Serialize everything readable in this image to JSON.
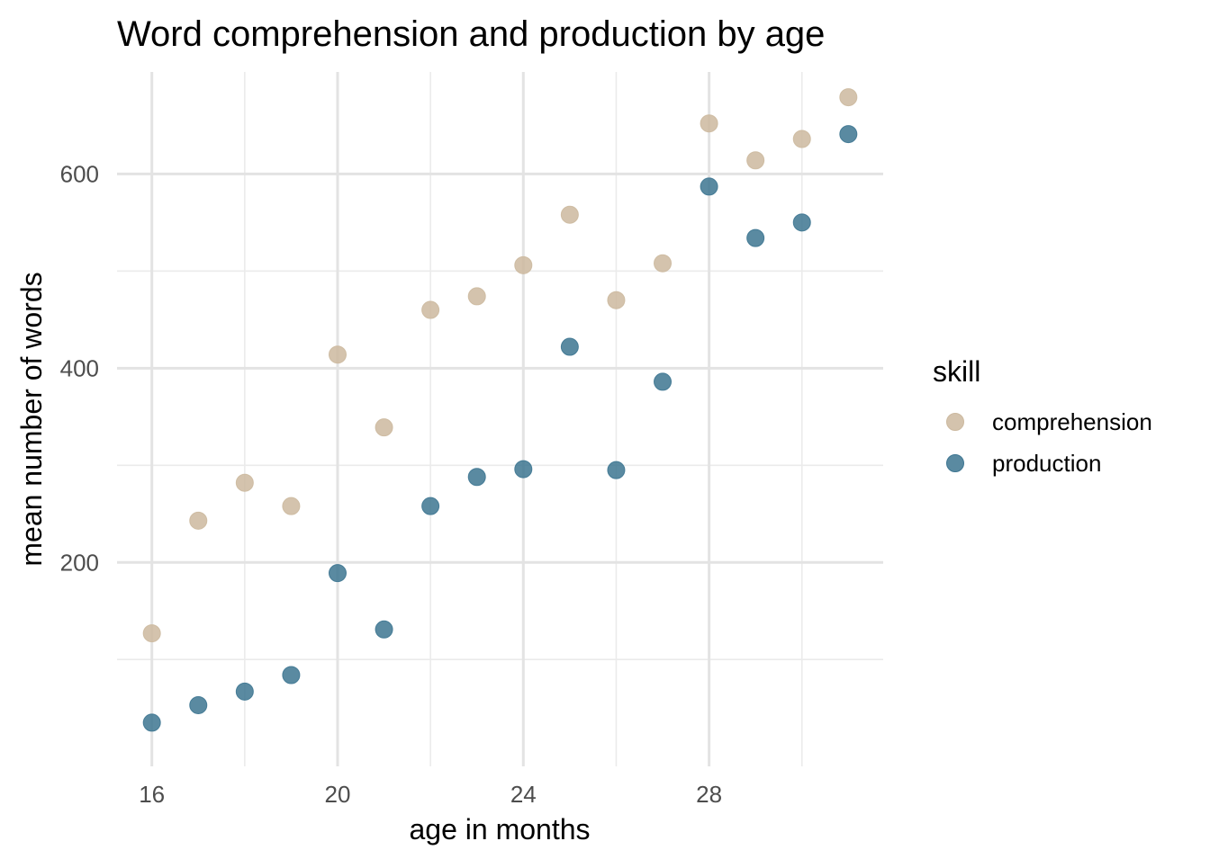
{
  "chart_data": {
    "type": "scatter",
    "title": "Word comprehension and production by age",
    "xlabel": "age in months",
    "ylabel": "mean number of words",
    "xlim": [
      15.25,
      31.75
    ],
    "ylim": [
      -10,
      705
    ],
    "x_ticks": [
      16,
      20,
      24,
      28
    ],
    "x_tick_labels": [
      "16",
      "20",
      "24",
      "28"
    ],
    "x_minor_gridlines": [
      18,
      22,
      26,
      30
    ],
    "y_ticks": [
      200,
      400,
      600
    ],
    "y_tick_labels": [
      "200",
      "400",
      "600"
    ],
    "y_minor_gridlines": [
      100,
      300,
      500
    ],
    "grid": true,
    "legend": {
      "title": "skill",
      "placement": "right"
    },
    "series": [
      {
        "name": "comprehension",
        "color": "#ccb99f",
        "x": [
          16,
          17,
          18,
          19,
          20,
          21,
          22,
          23,
          24,
          25,
          26,
          27,
          28,
          29,
          30,
          31
        ],
        "y": [
          127,
          243,
          282,
          258,
          414,
          339,
          460,
          474,
          506,
          558,
          470,
          508,
          652,
          614,
          636,
          679
        ]
      },
      {
        "name": "production",
        "color": "#3d7591",
        "x": [
          16,
          17,
          18,
          19,
          20,
          21,
          22,
          23,
          24,
          25,
          26,
          27,
          28,
          29,
          30,
          31
        ],
        "y": [
          35,
          53,
          67,
          84,
          189,
          131,
          258,
          288,
          296,
          422,
          295,
          386,
          587,
          534,
          550,
          641
        ]
      }
    ]
  }
}
